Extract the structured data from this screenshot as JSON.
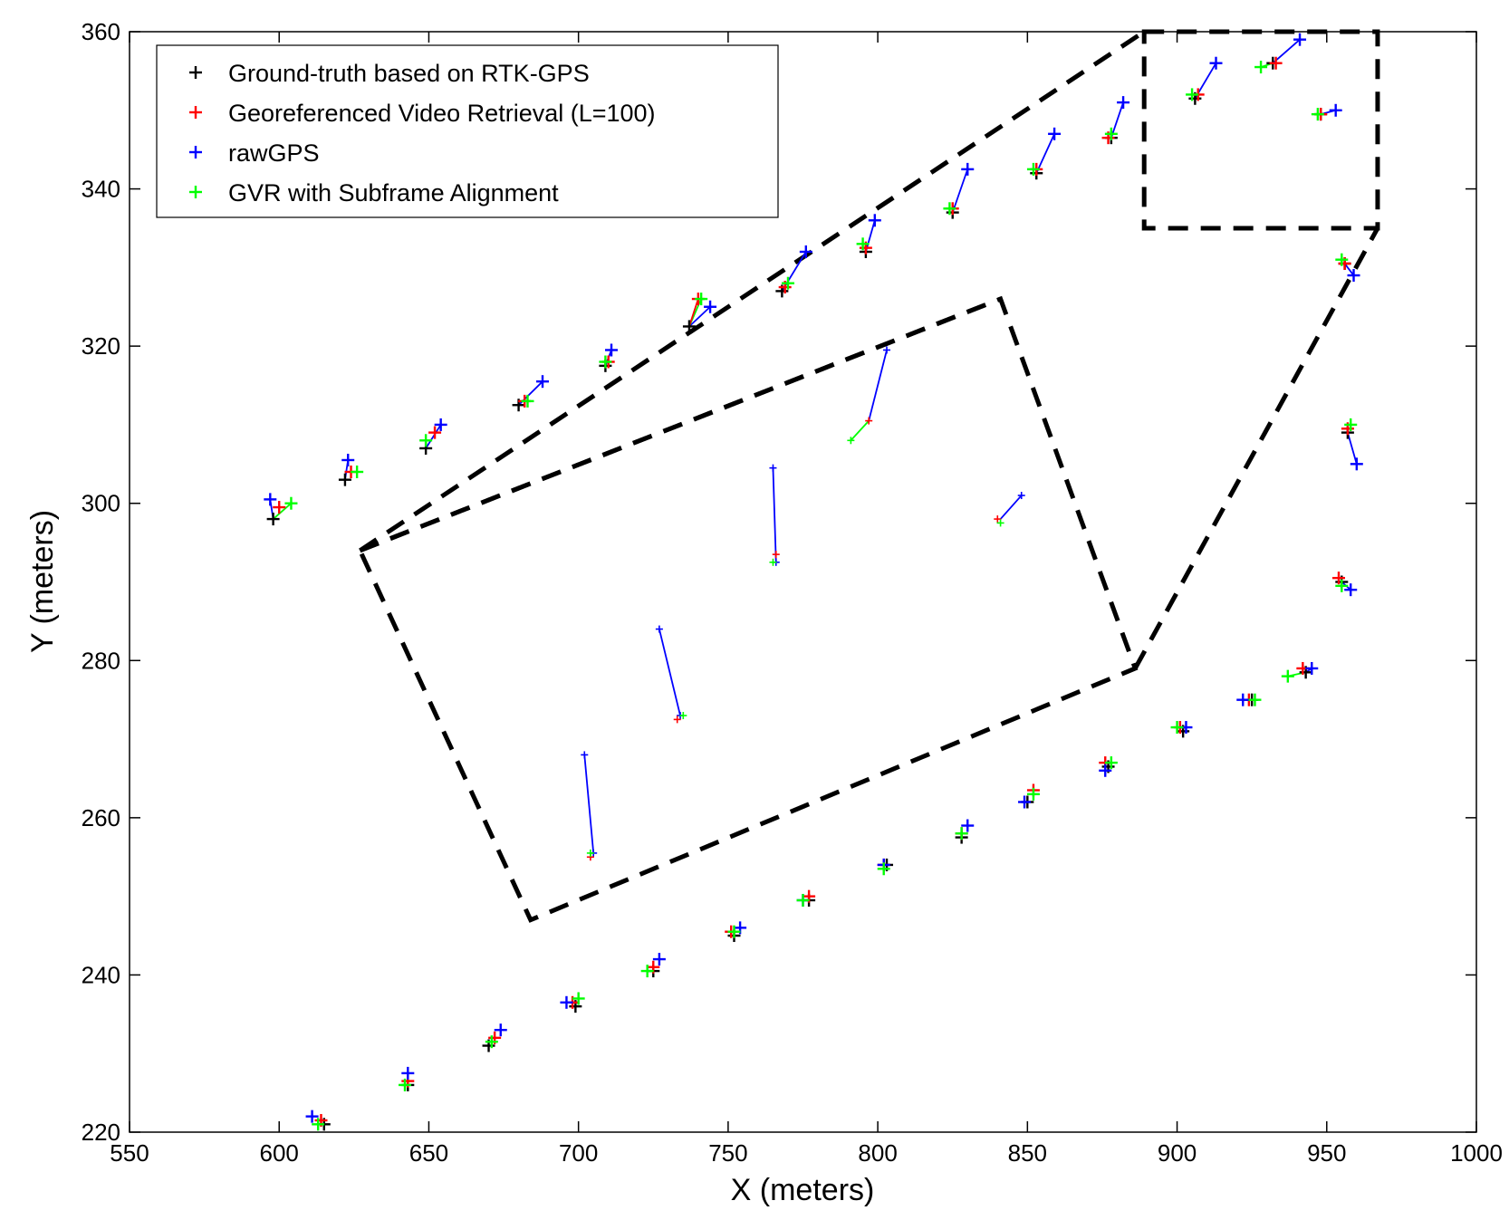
{
  "chart_data": {
    "type": "scatter",
    "title": "",
    "xlabel": "X (meters)",
    "ylabel": "Y (meters)",
    "xlim": [
      550,
      1000
    ],
    "ylim": [
      220,
      360
    ],
    "xticks": [
      550,
      600,
      650,
      700,
      750,
      800,
      850,
      900,
      950,
      1000
    ],
    "yticks": [
      220,
      240,
      260,
      280,
      300,
      320,
      340,
      360
    ],
    "grid": false,
    "legend": {
      "position": "top-left",
      "entries": [
        {
          "label": "Ground-truth based on RTK-GPS",
          "color": "#000000"
        },
        {
          "label": "Georeferenced Video Retrieval (L=100)",
          "color": "#ff0000"
        },
        {
          "label": "rawGPS",
          "color": "#0000ff"
        },
        {
          "label": "GVR with Subframe Alignment",
          "color": "#00ff00"
        }
      ]
    },
    "series": [
      {
        "name": "Ground-truth based on RTK-GPS",
        "color": "#000000",
        "points": [
          [
            598,
            298
          ],
          [
            622,
            303
          ],
          [
            649,
            307
          ],
          [
            680,
            312.5
          ],
          [
            709,
            317.5
          ],
          [
            737,
            322.5
          ],
          [
            768,
            327
          ],
          [
            796,
            332
          ],
          [
            825,
            337
          ],
          [
            853,
            342
          ],
          [
            878,
            346.5
          ],
          [
            906,
            351.5
          ],
          [
            932,
            356
          ],
          [
            948,
            349.5
          ],
          [
            956,
            330.5
          ],
          [
            957,
            309
          ],
          [
            955,
            290
          ],
          [
            943,
            278.5
          ],
          [
            925,
            275
          ],
          [
            902,
            271
          ],
          [
            877,
            266.5
          ],
          [
            850,
            262
          ],
          [
            828,
            257.5
          ],
          [
            803,
            254
          ],
          [
            777,
            249.5
          ],
          [
            752,
            245
          ],
          [
            725,
            240.5
          ],
          [
            699,
            236
          ],
          [
            670,
            231
          ],
          [
            643,
            226
          ],
          [
            615,
            221
          ]
        ]
      },
      {
        "name": "Georeferenced Video Retrieval (L=100)",
        "color": "#ff0000",
        "points": [
          [
            600,
            299.5
          ],
          [
            624,
            304
          ],
          [
            652,
            309
          ],
          [
            682,
            313
          ],
          [
            710,
            318
          ],
          [
            740,
            326
          ],
          [
            769,
            327.5
          ],
          [
            796,
            332.5
          ],
          [
            825,
            337.5
          ],
          [
            853,
            342.5
          ],
          [
            877,
            346.5
          ],
          [
            907,
            352
          ],
          [
            933,
            356
          ],
          [
            948,
            349.5
          ],
          [
            956,
            330.5
          ],
          [
            957,
            309.5
          ],
          [
            954,
            290.5
          ],
          [
            942,
            279
          ],
          [
            924,
            275
          ],
          [
            901,
            271.5
          ],
          [
            876,
            267
          ],
          [
            852,
            263.5
          ],
          [
            828,
            258
          ],
          [
            802,
            254
          ],
          [
            777,
            250
          ],
          [
            751,
            245.5
          ],
          [
            725,
            241
          ],
          [
            698,
            236.5
          ],
          [
            672,
            232
          ],
          [
            643,
            226.5
          ],
          [
            614,
            221.5
          ]
        ]
      },
      {
        "name": "rawGPS",
        "color": "#0000ff",
        "points": [
          [
            597,
            300.5
          ],
          [
            623,
            305.5
          ],
          [
            654,
            310
          ],
          [
            688,
            315.5
          ],
          [
            711,
            319.5
          ],
          [
            744,
            325
          ],
          [
            776,
            332
          ],
          [
            799,
            336
          ],
          [
            830,
            342.5
          ],
          [
            859,
            347
          ],
          [
            882,
            351
          ],
          [
            913,
            356
          ],
          [
            941,
            359
          ],
          [
            953,
            350
          ],
          [
            959,
            329
          ],
          [
            960,
            305
          ],
          [
            958,
            289
          ],
          [
            945,
            279
          ],
          [
            922,
            275
          ],
          [
            903,
            271.5
          ],
          [
            876,
            266
          ],
          [
            849,
            262
          ],
          [
            830,
            259
          ],
          [
            802,
            254
          ],
          [
            775,
            249.5
          ],
          [
            754,
            246
          ],
          [
            727,
            242
          ],
          [
            696,
            236.5
          ],
          [
            674,
            233
          ],
          [
            643,
            227.5
          ],
          [
            611,
            222
          ]
        ]
      },
      {
        "name": "GVR with Subframe Alignment",
        "color": "#00ff00",
        "points": [
          [
            604,
            300
          ],
          [
            626,
            304
          ],
          [
            649,
            308
          ],
          [
            683,
            313
          ],
          [
            709,
            318
          ],
          [
            741,
            326
          ],
          [
            770,
            328
          ],
          [
            795,
            333
          ],
          [
            824,
            337.5
          ],
          [
            852,
            342.5
          ],
          [
            878,
            347
          ],
          [
            905,
            352
          ],
          [
            928,
            355.5
          ],
          [
            947,
            349.5
          ],
          [
            955,
            331
          ],
          [
            958,
            310
          ],
          [
            955,
            289.5
          ],
          [
            937,
            278
          ],
          [
            926,
            275
          ],
          [
            900,
            271.5
          ],
          [
            878,
            267
          ],
          [
            852,
            263
          ],
          [
            828,
            258
          ],
          [
            802,
            253.5
          ],
          [
            775,
            249.5
          ],
          [
            752,
            245.5
          ],
          [
            723,
            240.5
          ],
          [
            700,
            237
          ],
          [
            671,
            231.5
          ],
          [
            642,
            226
          ],
          [
            613,
            221
          ]
        ]
      }
    ],
    "segments": [
      {
        "color": "#0000ff",
        "from": [
          598,
          298
        ],
        "to": [
          597,
          300.5
        ]
      },
      {
        "color": "#0000ff",
        "from": [
          622,
          303
        ],
        "to": [
          623,
          305.5
        ]
      },
      {
        "color": "#0000ff",
        "from": [
          649,
          307
        ],
        "to": [
          654,
          310
        ]
      },
      {
        "color": "#0000ff",
        "from": [
          680,
          312.5
        ],
        "to": [
          688,
          315.5
        ]
      },
      {
        "color": "#0000ff",
        "from": [
          709,
          317.5
        ],
        "to": [
          711,
          319.5
        ]
      },
      {
        "color": "#0000ff",
        "from": [
          737,
          322.5
        ],
        "to": [
          744,
          325
        ]
      },
      {
        "color": "#0000ff",
        "from": [
          768,
          327
        ],
        "to": [
          776,
          332
        ]
      },
      {
        "color": "#0000ff",
        "from": [
          796,
          332
        ],
        "to": [
          799,
          336
        ]
      },
      {
        "color": "#0000ff",
        "from": [
          825,
          337
        ],
        "to": [
          830,
          342.5
        ]
      },
      {
        "color": "#0000ff",
        "from": [
          853,
          342
        ],
        "to": [
          859,
          347
        ]
      },
      {
        "color": "#0000ff",
        "from": [
          878,
          346.5
        ],
        "to": [
          882,
          351
        ]
      },
      {
        "color": "#0000ff",
        "from": [
          906,
          351.5
        ],
        "to": [
          913,
          356
        ]
      },
      {
        "color": "#0000ff",
        "from": [
          932,
          356
        ],
        "to": [
          941,
          359
        ]
      },
      {
        "color": "#0000ff",
        "from": [
          948,
          349.5
        ],
        "to": [
          953,
          350
        ]
      },
      {
        "color": "#0000ff",
        "from": [
          956,
          330.5
        ],
        "to": [
          959,
          329
        ]
      },
      {
        "color": "#0000ff",
        "from": [
          957,
          309
        ],
        "to": [
          960,
          305
        ]
      },
      {
        "color": "#0000ff",
        "from": [
          955,
          290
        ],
        "to": [
          958,
          289
        ]
      },
      {
        "color": "#0000ff",
        "from": [
          943,
          278.5
        ],
        "to": [
          945,
          279
        ]
      },
      {
        "color": "#0000ff",
        "from": [
          925,
          275
        ],
        "to": [
          922,
          275
        ]
      },
      {
        "color": "#00ff00",
        "from": [
          598,
          298
        ],
        "to": [
          604,
          300
        ]
      },
      {
        "color": "#00ff00",
        "from": [
          737,
          322.5
        ],
        "to": [
          741,
          326
        ]
      },
      {
        "color": "#00ff00",
        "from": [
          928,
          355.5
        ],
        "to": [
          932,
          356
        ]
      },
      {
        "color": "#00ff00",
        "from": [
          937,
          278
        ],
        "to": [
          943,
          278.5
        ]
      },
      {
        "color": "#ff0000",
        "from": [
          737,
          322.5
        ],
        "to": [
          740,
          326
        ]
      },
      {
        "color": "#0000ff",
        "from": [
          705,
          255.5
        ],
        "to": [
          702,
          268
        ]
      },
      {
        "color": "#0000ff",
        "from": [
          734,
          273
        ],
        "to": [
          727,
          284
        ]
      },
      {
        "color": "#0000ff",
        "from": [
          766,
          292.5
        ],
        "to": [
          765,
          304.5
        ]
      },
      {
        "color": "#0000ff",
        "from": [
          797,
          310.5
        ],
        "to": [
          803,
          319.5
        ]
      },
      {
        "color": "#0000ff",
        "from": [
          841,
          298
        ],
        "to": [
          848,
          301
        ]
      },
      {
        "color": "#00ff00",
        "from": [
          797,
          310.5
        ],
        "to": [
          791,
          308
        ]
      }
    ],
    "small_markers": [
      {
        "color": "#0000ff",
        "points": [
          [
            702,
            268
          ],
          [
            727,
            284
          ],
          [
            765,
            304.5
          ],
          [
            803,
            319.5
          ],
          [
            848,
            301
          ],
          [
            705,
            255.5
          ],
          [
            734,
            273
          ],
          [
            766,
            292.5
          ]
        ]
      },
      {
        "color": "#ff0000",
        "points": [
          [
            704,
            255
          ],
          [
            733,
            272.5
          ],
          [
            766,
            293.5
          ],
          [
            797,
            310.5
          ],
          [
            840,
            298
          ]
        ]
      },
      {
        "color": "#00ff00",
        "points": [
          [
            704,
            255.5
          ],
          [
            735,
            273
          ],
          [
            765,
            292.5
          ],
          [
            791,
            308
          ],
          [
            841,
            297.5
          ]
        ]
      }
    ],
    "annotations": [
      {
        "type": "dashed-polygon",
        "points": [
          [
            889,
            360
          ],
          [
            967,
            360
          ],
          [
            967,
            335
          ],
          [
            889,
            335
          ]
        ]
      },
      {
        "type": "dashed-polygon",
        "points": [
          [
            627,
            294
          ],
          [
            841,
            326
          ],
          [
            886,
            279
          ],
          [
            684,
            247
          ]
        ]
      },
      {
        "type": "dashed-line",
        "points": [
          [
            627,
            294
          ],
          [
            889,
            360
          ]
        ]
      },
      {
        "type": "dashed-line",
        "points": [
          [
            627,
            294
          ],
          [
            841,
            326
          ]
        ]
      },
      {
        "type": "dashed-line",
        "points": [
          [
            886,
            279
          ],
          [
            967,
            335
          ]
        ]
      }
    ]
  }
}
